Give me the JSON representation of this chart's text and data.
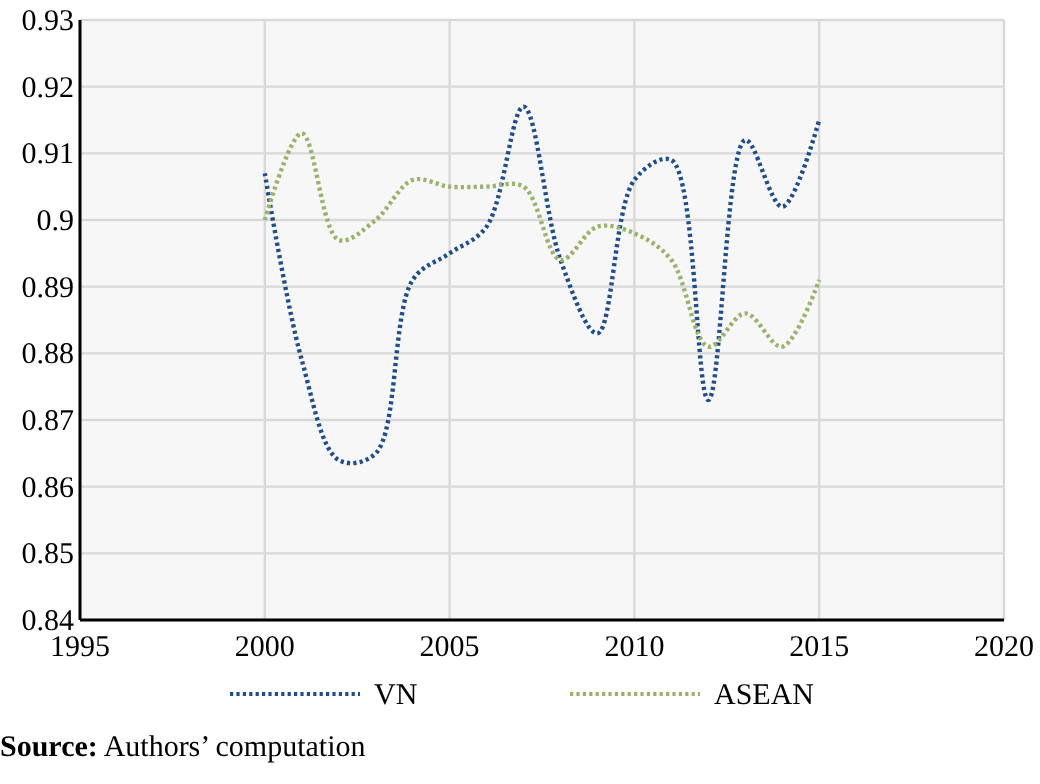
{
  "chart_data": {
    "type": "line",
    "x": [
      2000,
      2001,
      2002,
      2003,
      2004,
      2005,
      2006,
      2007,
      2008,
      2009,
      2010,
      2011,
      2012,
      2013,
      2014,
      2015
    ],
    "series": [
      {
        "name": "VN",
        "color": "#1f4e8c",
        "values": [
          0.907,
          0.879,
          0.864,
          0.865,
          0.891,
          0.895,
          0.899,
          0.917,
          0.894,
          0.883,
          0.906,
          0.909,
          0.873,
          0.912,
          0.902,
          0.915
        ]
      },
      {
        "name": "ASEAN",
        "color": "#9bb26a",
        "values": [
          0.9,
          0.913,
          0.897,
          0.9,
          0.906,
          0.905,
          0.905,
          0.905,
          0.894,
          0.899,
          0.898,
          0.894,
          0.881,
          0.886,
          0.881,
          0.891
        ]
      }
    ],
    "xlim": [
      1995,
      2020
    ],
    "xticks": [
      1995,
      2000,
      2005,
      2010,
      2015,
      2020
    ],
    "ylim": [
      0.84,
      0.93
    ],
    "yticks": [
      0.84,
      0.85,
      0.86,
      0.87,
      0.88,
      0.89,
      0.9,
      0.91,
      0.92,
      0.93
    ],
    "grid": true,
    "legend": "bottom",
    "line_style": "dotted",
    "marker": "none",
    "annotations": [
      "Source: Authors’ computation"
    ]
  }
}
